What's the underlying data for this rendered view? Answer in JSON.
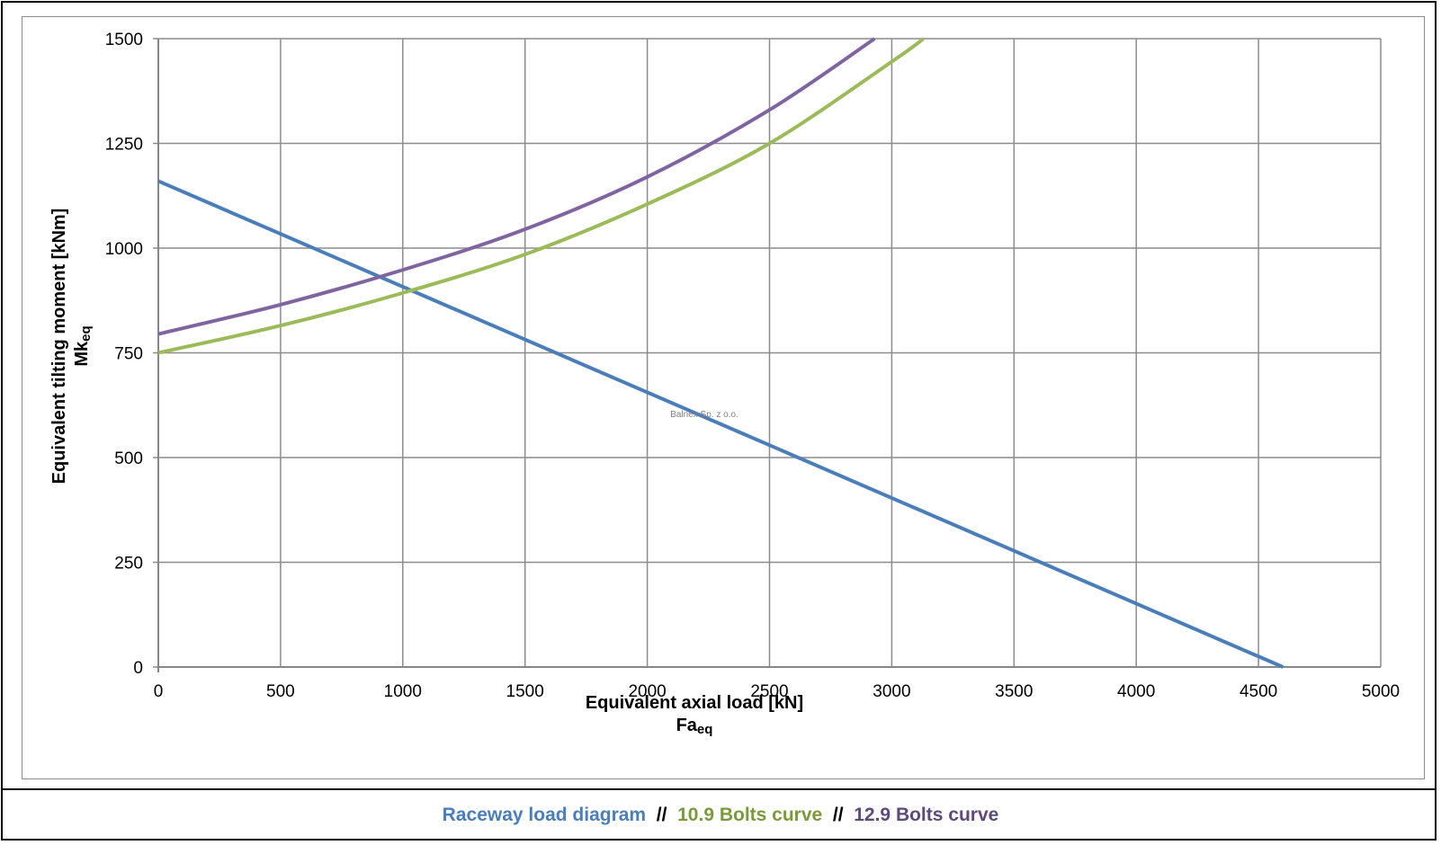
{
  "chart_data": {
    "type": "line",
    "title": "",
    "xlabel": "Equivalent axial load [kN]",
    "xlabel_sub": "Fa",
    "xlabel_subscript": "eq",
    "ylabel": "Equivalent tilting moment [kNm]",
    "ylabel_sub": "Mk",
    "ylabel_subscript": "eq",
    "xlim": [
      0,
      5000
    ],
    "ylim": [
      0,
      1500
    ],
    "xticks": [
      0,
      500,
      1000,
      1500,
      2000,
      2500,
      3000,
      3500,
      4000,
      4500,
      5000
    ],
    "yticks": [
      0,
      250,
      500,
      750,
      1000,
      1250,
      1500
    ],
    "grid": true,
    "watermark": "Balnex Sp. z o.o.",
    "series": [
      {
        "name": "Raceway load diagram",
        "color": "#4a7ebb",
        "x": [
          0,
          4600
        ],
        "y": [
          1160,
          0
        ]
      },
      {
        "name": "10.9 Bolts curve",
        "color": "#9bbb59",
        "x": [
          0,
          500,
          1000,
          1500,
          2000,
          2500,
          3000,
          3130
        ],
        "y": [
          750,
          815,
          893,
          985,
          1105,
          1250,
          1445,
          1500
        ]
      },
      {
        "name": "12.9 Bolts curve",
        "color": "#8064a2",
        "x": [
          0,
          500,
          1000,
          1500,
          2000,
          2500,
          2930
        ],
        "y": [
          795,
          865,
          948,
          1045,
          1170,
          1330,
          1500
        ]
      }
    ]
  },
  "legend": {
    "items": [
      {
        "label": "Raceway load diagram",
        "color": "#4a7ebb"
      },
      {
        "label": "10.9 Bolts curve",
        "color": "#7a9a3a"
      },
      {
        "label": "12.9 Bolts curve",
        "color": "#5f497a"
      }
    ],
    "separator": "//"
  }
}
